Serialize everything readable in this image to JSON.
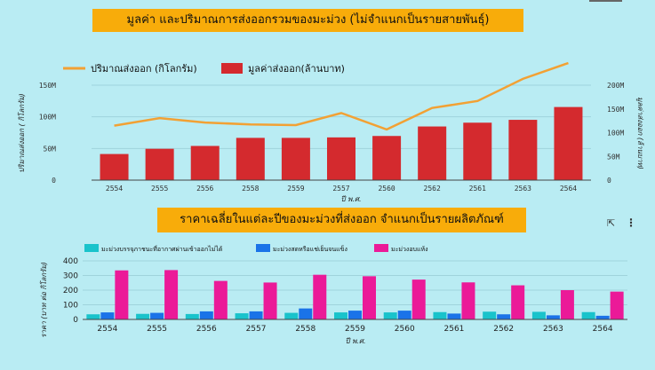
{
  "title1": "มูลค่า และปริมาณการส่งออกรวมของมะม่วง (ไม่จำแนกเป็นรายสายพันธุ์)",
  "title2": "ราคาเฉลี่ยในแต่ละปีของมะม่วงที่ส่งออก จำแนกเป็นรายผลิตภัณฑ์",
  "colors": {
    "background": "#b9ecf3",
    "title_bg": "#f8ac0a",
    "line": "#f2a134",
    "bar": "#d42a2e",
    "cyan": "#19c3cb",
    "blue": "#1a73e8",
    "magenta": "#eb1a98"
  },
  "icons": [
    "expand-icon",
    "more-vert-icon"
  ],
  "chart_data": [
    {
      "type": "bar",
      "title": "มูลค่า และปริมาณการส่งออกรวมของมะม่วง (ไม่จำแนกเป็นรายสายพันธุ์)",
      "categories": [
        "2554",
        "2555",
        "2556",
        "2558",
        "2559",
        "2557",
        "2560",
        "2562",
        "2561",
        "2563",
        "2564"
      ],
      "series": [
        {
          "name": "ปริมาณส่งออก (กิโลกรัม)",
          "kind": "line",
          "axis": "left",
          "values": [
            86000000,
            98000000,
            91000000,
            88000000,
            87000000,
            106000000,
            80000000,
            114000000,
            125000000,
            160000000,
            185000000
          ]
        },
        {
          "name": "มูลค่าส่งออก(ล้านบาท)",
          "kind": "bar",
          "axis": "right",
          "values": [
            55000000,
            66000000,
            72000000,
            89000000,
            89000000,
            90000000,
            93000000,
            113000000,
            121000000,
            127000000,
            154000000
          ]
        }
      ],
      "xlabel": "ปี พ.ศ.",
      "ylabel": "ปริมาณส่งออก ( กิโลกรัม)",
      "ylabel_right": "มูลค่าส่งออก (ล้านบาท)",
      "ylim": [
        0,
        150000000
      ],
      "ylim_right": [
        0,
        200000000
      ],
      "yticks": [
        "0",
        "50M",
        "100M",
        "150M"
      ],
      "yticks_right": [
        "0",
        "50M",
        "100M",
        "150M",
        "200M"
      ],
      "legend": "top-left"
    },
    {
      "type": "bar",
      "title": "ราคาเฉลี่ยในแต่ละปีของมะม่วงที่ส่งออก จำแนกเป็นรายผลิตภัณฑ์",
      "categories": [
        "2554",
        "2555",
        "2556",
        "2557",
        "2558",
        "2559",
        "2560",
        "2561",
        "2562",
        "2563",
        "2564"
      ],
      "series": [
        {
          "name": "มะม่วงบรรจุภาชนะที่อากาศผ่านเข้าออกไม่ได้",
          "values": [
            35,
            38,
            37,
            42,
            45,
            48,
            48,
            50,
            53,
            52,
            50
          ]
        },
        {
          "name": "มะม่วงสดหรือแช่เย็นจนแข็ง",
          "values": [
            48,
            45,
            55,
            55,
            75,
            60,
            60,
            40,
            35,
            28,
            25
          ]
        },
        {
          "name": "มะม่วงอบแห้ง",
          "values": [
            335,
            337,
            263,
            252,
            305,
            295,
            272,
            253,
            233,
            200,
            190
          ]
        }
      ],
      "xlabel": "ปี พ.ศ.",
      "ylabel": "ราคา (บาท ต่อ กิโลกรัม)",
      "ylim": [
        0,
        400
      ],
      "yticks": [
        "0",
        "100",
        "200",
        "300",
        "400"
      ],
      "legend": "top-left"
    }
  ]
}
